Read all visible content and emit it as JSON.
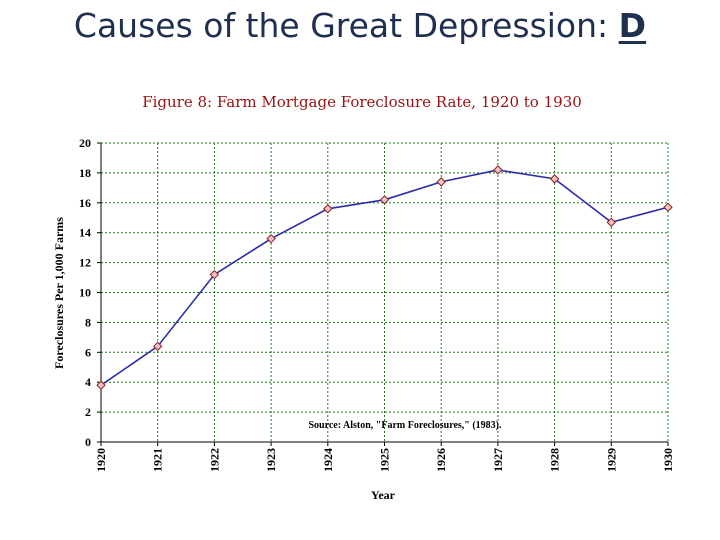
{
  "slide": {
    "title": "Causes of the Great Depression:",
    "letter": "D"
  },
  "chart_data": {
    "type": "line",
    "title": "Figure 8: Farm Mortgage Foreclosure Rate, 1920 to 1930",
    "xlabel": "Year",
    "ylabel": "Foreclosures Per 1,000 Farms",
    "x": [
      "1920",
      "1921",
      "1922",
      "1923",
      "1924",
      "1925",
      "1926",
      "1927",
      "1928",
      "1929",
      "1930"
    ],
    "y": [
      3.8,
      6.4,
      11.2,
      13.6,
      15.6,
      16.2,
      17.4,
      18.2,
      17.6,
      14.7,
      15.7
    ],
    "ylim": [
      0,
      20
    ],
    "yticks": [
      0,
      2,
      4,
      6,
      8,
      10,
      12,
      14,
      16,
      18,
      20
    ],
    "grid": true,
    "annotation": "Source: Alston, \"Farm Foreclosures,\" (1983).",
    "colors": {
      "line": "#2b2bb0",
      "marker_fill": "#f4c2c2",
      "marker_edge": "#8b2020",
      "grid": "#1a7a1a",
      "title": "#9a1010"
    }
  }
}
